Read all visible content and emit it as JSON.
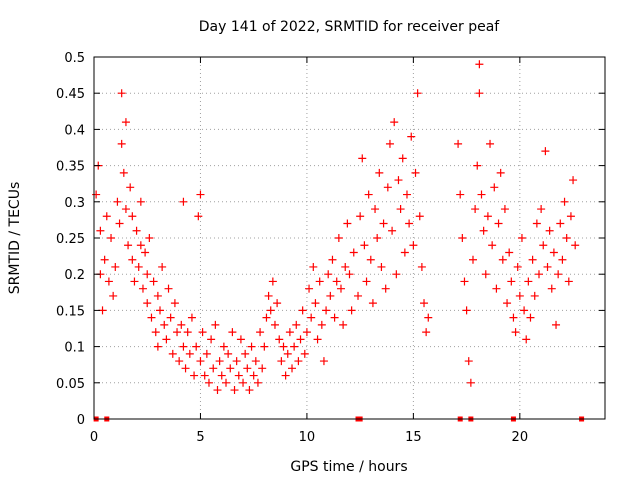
{
  "chart_data": {
    "type": "scatter",
    "title": "Day 141 of 2022, SRMTID for receiver peaf",
    "xlabel": "GPS time / hours",
    "ylabel": "SRMTID / TECUs",
    "xlim": [
      0,
      24
    ],
    "ylim": [
      0,
      0.5
    ],
    "x_ticks": [
      "0",
      "5",
      "10",
      "15",
      "20"
    ],
    "x_tick_values": [
      0,
      5,
      10,
      15,
      20
    ],
    "y_ticks": [
      "0",
      "0.05",
      "0.1",
      "0.15",
      "0.2",
      "0.25",
      "0.3",
      "0.35",
      "0.4",
      "0.45",
      "0.5"
    ],
    "y_tick_values": [
      0,
      0.05,
      0.1,
      0.15,
      0.2,
      0.25,
      0.3,
      0.35,
      0.4,
      0.45,
      0.5
    ],
    "grid": true,
    "marker": "+",
    "color": "#ff0000",
    "series": [
      {
        "name": "SRMTID",
        "points": [
          [
            0.1,
            0.31
          ],
          [
            0.2,
            0.35
          ],
          [
            0.3,
            0.26
          ],
          [
            0.3,
            0.2
          ],
          [
            0.4,
            0.15
          ],
          [
            0.5,
            0.22
          ],
          [
            0.6,
            0.28
          ],
          [
            0.7,
            0.19
          ],
          [
            0.8,
            0.25
          ],
          [
            0.9,
            0.17
          ],
          [
            1.0,
            0.21
          ],
          [
            1.1,
            0.3
          ],
          [
            1.2,
            0.27
          ],
          [
            1.3,
            0.38
          ],
          [
            1.3,
            0.45
          ],
          [
            1.4,
            0.34
          ],
          [
            1.5,
            0.41
          ],
          [
            1.5,
            0.29
          ],
          [
            1.6,
            0.24
          ],
          [
            1.7,
            0.32
          ],
          [
            1.8,
            0.28
          ],
          [
            1.8,
            0.22
          ],
          [
            1.9,
            0.19
          ],
          [
            2.0,
            0.26
          ],
          [
            2.1,
            0.21
          ],
          [
            2.2,
            0.3
          ],
          [
            2.2,
            0.24
          ],
          [
            2.3,
            0.18
          ],
          [
            2.4,
            0.23
          ],
          [
            2.5,
            0.2
          ],
          [
            2.5,
            0.16
          ],
          [
            2.6,
            0.25
          ],
          [
            2.7,
            0.14
          ],
          [
            2.8,
            0.19
          ],
          [
            2.9,
            0.12
          ],
          [
            3.0,
            0.17
          ],
          [
            3.0,
            0.1
          ],
          [
            3.1,
            0.15
          ],
          [
            3.2,
            0.21
          ],
          [
            3.3,
            0.13
          ],
          [
            3.4,
            0.11
          ],
          [
            3.5,
            0.18
          ],
          [
            3.6,
            0.14
          ],
          [
            3.7,
            0.09
          ],
          [
            3.8,
            0.16
          ],
          [
            3.9,
            0.12
          ],
          [
            4.0,
            0.08
          ],
          [
            4.1,
            0.13
          ],
          [
            4.2,
            0.1
          ],
          [
            4.2,
            0.3
          ],
          [
            4.3,
            0.07
          ],
          [
            4.4,
            0.12
          ],
          [
            4.5,
            0.09
          ],
          [
            4.6,
            0.14
          ],
          [
            4.7,
            0.06
          ],
          [
            4.8,
            0.1
          ],
          [
            4.9,
            0.28
          ],
          [
            5.0,
            0.08
          ],
          [
            5.0,
            0.31
          ],
          [
            5.1,
            0.12
          ],
          [
            5.2,
            0.06
          ],
          [
            5.3,
            0.09
          ],
          [
            5.4,
            0.05
          ],
          [
            5.5,
            0.11
          ],
          [
            5.6,
            0.07
          ],
          [
            5.7,
            0.13
          ],
          [
            5.8,
            0.04
          ],
          [
            5.9,
            0.08
          ],
          [
            6.0,
            0.06
          ],
          [
            6.1,
            0.1
          ],
          [
            6.2,
            0.05
          ],
          [
            6.3,
            0.09
          ],
          [
            6.4,
            0.07
          ],
          [
            6.5,
            0.12
          ],
          [
            6.6,
            0.04
          ],
          [
            6.7,
            0.08
          ],
          [
            6.8,
            0.06
          ],
          [
            6.9,
            0.11
          ],
          [
            7.0,
            0.05
          ],
          [
            7.1,
            0.09
          ],
          [
            7.2,
            0.07
          ],
          [
            7.3,
            0.04
          ],
          [
            7.4,
            0.1
          ],
          [
            7.5,
            0.06
          ],
          [
            7.6,
            0.08
          ],
          [
            7.7,
            0.05
          ],
          [
            7.8,
            0.12
          ],
          [
            7.9,
            0.07
          ],
          [
            8.0,
            0.1
          ],
          [
            8.1,
            0.14
          ],
          [
            8.2,
            0.17
          ],
          [
            8.3,
            0.15
          ],
          [
            8.4,
            0.19
          ],
          [
            8.5,
            0.13
          ],
          [
            8.6,
            0.16
          ],
          [
            8.7,
            0.11
          ],
          [
            8.8,
            0.08
          ],
          [
            8.9,
            0.1
          ],
          [
            9.0,
            0.06
          ],
          [
            9.1,
            0.09
          ],
          [
            9.2,
            0.12
          ],
          [
            9.3,
            0.07
          ],
          [
            9.4,
            0.1
          ],
          [
            9.5,
            0.13
          ],
          [
            9.6,
            0.08
          ],
          [
            9.7,
            0.11
          ],
          [
            9.8,
            0.15
          ],
          [
            9.9,
            0.09
          ],
          [
            10.0,
            0.12
          ],
          [
            10.1,
            0.18
          ],
          [
            10.2,
            0.14
          ],
          [
            10.3,
            0.21
          ],
          [
            10.4,
            0.16
          ],
          [
            10.5,
            0.11
          ],
          [
            10.6,
            0.19
          ],
          [
            10.7,
            0.13
          ],
          [
            10.8,
            0.08
          ],
          [
            10.9,
            0.15
          ],
          [
            11.0,
            0.2
          ],
          [
            11.1,
            0.17
          ],
          [
            11.2,
            0.22
          ],
          [
            11.3,
            0.14
          ],
          [
            11.4,
            0.19
          ],
          [
            11.5,
            0.25
          ],
          [
            11.6,
            0.18
          ],
          [
            11.7,
            0.13
          ],
          [
            11.8,
            0.21
          ],
          [
            11.9,
            0.27
          ],
          [
            12.0,
            0.2
          ],
          [
            12.1,
            0.15
          ],
          [
            12.2,
            0.23
          ],
          [
            12.4,
            0.17
          ],
          [
            12.5,
            0.28
          ],
          [
            12.6,
            0.36
          ],
          [
            12.7,
            0.24
          ],
          [
            12.8,
            0.19
          ],
          [
            12.9,
            0.31
          ],
          [
            13.0,
            0.22
          ],
          [
            13.1,
            0.16
          ],
          [
            13.2,
            0.29
          ],
          [
            13.3,
            0.25
          ],
          [
            13.4,
            0.34
          ],
          [
            13.5,
            0.21
          ],
          [
            13.6,
            0.27
          ],
          [
            13.7,
            0.18
          ],
          [
            13.8,
            0.32
          ],
          [
            13.9,
            0.38
          ],
          [
            14.0,
            0.26
          ],
          [
            14.1,
            0.41
          ],
          [
            14.2,
            0.2
          ],
          [
            14.3,
            0.33
          ],
          [
            14.4,
            0.29
          ],
          [
            14.5,
            0.36
          ],
          [
            14.6,
            0.23
          ],
          [
            14.7,
            0.31
          ],
          [
            14.8,
            0.27
          ],
          [
            14.9,
            0.39
          ],
          [
            15.0,
            0.24
          ],
          [
            15.1,
            0.34
          ],
          [
            15.2,
            0.45
          ],
          [
            15.3,
            0.28
          ],
          [
            15.4,
            0.21
          ],
          [
            15.5,
            0.16
          ],
          [
            15.6,
            0.12
          ],
          [
            15.7,
            0.14
          ],
          [
            17.1,
            0.38
          ],
          [
            17.2,
            0.31
          ],
          [
            17.3,
            0.25
          ],
          [
            17.4,
            0.19
          ],
          [
            17.5,
            0.15
          ],
          [
            17.6,
            0.08
          ],
          [
            17.7,
            0.05
          ],
          [
            17.8,
            0.22
          ],
          [
            17.9,
            0.29
          ],
          [
            18.0,
            0.35
          ],
          [
            18.1,
            0.45
          ],
          [
            18.1,
            0.49
          ],
          [
            18.2,
            0.31
          ],
          [
            18.3,
            0.26
          ],
          [
            18.4,
            0.2
          ],
          [
            18.5,
            0.28
          ],
          [
            18.6,
            0.38
          ],
          [
            18.7,
            0.24
          ],
          [
            18.8,
            0.32
          ],
          [
            18.9,
            0.18
          ],
          [
            19.0,
            0.27
          ],
          [
            19.1,
            0.34
          ],
          [
            19.2,
            0.22
          ],
          [
            19.3,
            0.29
          ],
          [
            19.4,
            0.16
          ],
          [
            19.5,
            0.23
          ],
          [
            19.6,
            0.19
          ],
          [
            19.7,
            0.14
          ],
          [
            19.8,
            0.12
          ],
          [
            19.9,
            0.21
          ],
          [
            20.0,
            0.17
          ],
          [
            20.1,
            0.25
          ],
          [
            20.2,
            0.15
          ],
          [
            20.3,
            0.11
          ],
          [
            20.4,
            0.19
          ],
          [
            20.5,
            0.14
          ],
          [
            20.6,
            0.22
          ],
          [
            20.7,
            0.17
          ],
          [
            20.8,
            0.27
          ],
          [
            20.9,
            0.2
          ],
          [
            21.0,
            0.29
          ],
          [
            21.1,
            0.24
          ],
          [
            21.2,
            0.37
          ],
          [
            21.3,
            0.21
          ],
          [
            21.4,
            0.26
          ],
          [
            21.5,
            0.18
          ],
          [
            21.6,
            0.23
          ],
          [
            21.7,
            0.13
          ],
          [
            21.8,
            0.2
          ],
          [
            21.9,
            0.27
          ],
          [
            22.0,
            0.22
          ],
          [
            22.1,
            0.3
          ],
          [
            22.2,
            0.25
          ],
          [
            22.3,
            0.19
          ],
          [
            22.4,
            0.28
          ],
          [
            22.5,
            0.33
          ],
          [
            22.6,
            0.24
          ]
        ]
      }
    ],
    "zero_markers": [
      0.1,
      0.6,
      12.4,
      12.5,
      17.2,
      17.7,
      19.7,
      22.9
    ]
  }
}
